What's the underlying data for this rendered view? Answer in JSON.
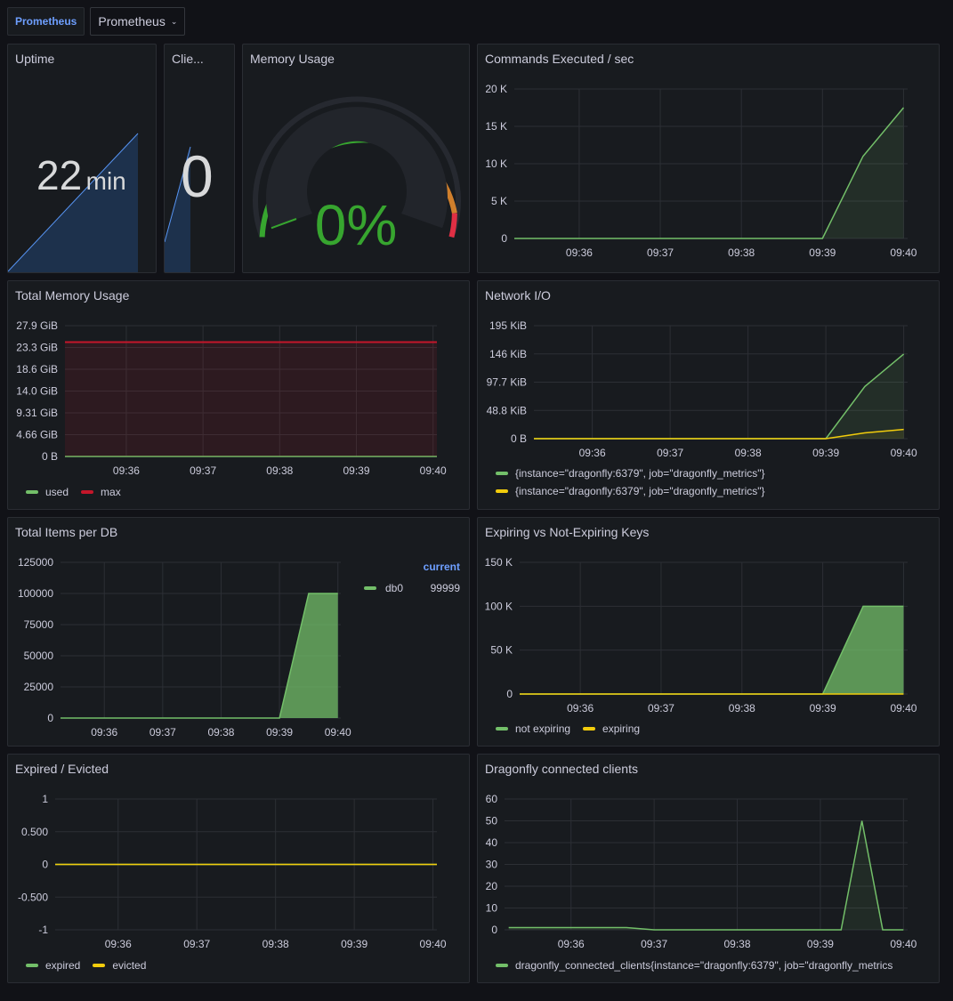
{
  "topbar": {
    "datasource_label": "Prometheus",
    "datasource_value": "Prometheus"
  },
  "panels": {
    "uptime": {
      "title": "Uptime",
      "value": "22",
      "unit": "min"
    },
    "clients": {
      "title": "Clie...",
      "value": "0"
    },
    "memory_usage": {
      "title": "Memory Usage",
      "value": "0%",
      "gauge_percent": 0
    },
    "commands": {
      "title": "Commands Executed / sec"
    },
    "total_memory": {
      "title": "Total Memory Usage",
      "legend": [
        "used",
        "max"
      ]
    },
    "network": {
      "title": "Network I/O",
      "legend": [
        "{instance=\"dragonfly:6379\", job=\"dragonfly_metrics\"}",
        "{instance=\"dragonfly:6379\", job=\"dragonfly_metrics\"}"
      ]
    },
    "items_per_db": {
      "title": "Total Items per DB",
      "legend_header": "current",
      "legend_name": "db0",
      "legend_value": "99999"
    },
    "expiring": {
      "title": "Expiring vs Not-Expiring Keys",
      "legend": [
        "not expiring",
        "expiring"
      ]
    },
    "expired": {
      "title": "Expired / Evicted",
      "legend": [
        "expired",
        "evicted"
      ]
    },
    "connected": {
      "title": "Dragonfly connected clients",
      "legend": [
        "dragonfly_connected_clients{instance=\"dragonfly:6379\", job=\"dragonfly_metrics"
      ]
    }
  },
  "colors": {
    "green": "#73bf69",
    "yellow": "#f2cc0c",
    "red": "#c4162a",
    "orange": "#ff9830",
    "blue": "#5794f2",
    "gauge_green": "#37a52f"
  },
  "chart_data": [
    {
      "type": "area",
      "title": "Commands Executed / sec",
      "x": [
        "09:35:12",
        "09:35:42",
        "09:36:12",
        "09:36:42",
        "09:37:12",
        "09:37:42",
        "09:38:12",
        "09:38:42",
        "09:39:00",
        "09:39:30",
        "09:40:00"
      ],
      "y_tick_labels": [
        "0",
        "5 K",
        "10 K",
        "15 K",
        "20 K"
      ],
      "x_tick_labels": [
        "09:36",
        "09:37",
        "09:38",
        "09:39",
        "09:40"
      ],
      "ylim": [
        0,
        20000
      ],
      "series": [
        {
          "values": [
            0,
            0,
            0,
            0,
            0,
            0,
            0,
            0,
            0,
            11000,
            17500
          ]
        }
      ]
    },
    {
      "type": "line",
      "title": "Total Memory Usage",
      "y_tick_labels": [
        "0 B",
        "4.66 GiB",
        "9.31 GiB",
        "14.0 GiB",
        "18.6 GiB",
        "23.3 GiB",
        "27.9 GiB"
      ],
      "x_tick_labels": [
        "09:36",
        "09:37",
        "09:38",
        "09:39",
        "09:40"
      ],
      "ylim": [
        0,
        27.9
      ],
      "series": [
        {
          "name": "used",
          "values": [
            0,
            0
          ]
        },
        {
          "name": "max",
          "values": [
            24.4,
            24.4
          ]
        }
      ]
    },
    {
      "type": "area",
      "title": "Network I/O",
      "x": [
        "09:35:15",
        "09:39:00",
        "09:39:30",
        "09:40:00"
      ],
      "y_tick_labels": [
        "0 B",
        "48.8 KiB",
        "97.7 KiB",
        "146 KiB",
        "195 KiB"
      ],
      "x_tick_labels": [
        "09:36",
        "09:37",
        "09:38",
        "09:39",
        "09:40"
      ],
      "ylim": [
        0,
        195
      ],
      "series": [
        {
          "name": "{instance=\"dragonfly:6379\", job=\"dragonfly_metrics\"}",
          "values": [
            0,
            0,
            90,
            146
          ]
        },
        {
          "name": "{instance=\"dragonfly:6379\", job=\"dragonfly_metrics\"}",
          "values": [
            0,
            0,
            10,
            16
          ]
        }
      ]
    },
    {
      "type": "area",
      "title": "Total Items per DB",
      "x": [
        "09:35:15",
        "09:39:00",
        "09:39:30",
        "09:40:00"
      ],
      "y_tick_labels": [
        "0",
        "25000",
        "50000",
        "75000",
        "100000",
        "125000"
      ],
      "x_tick_labels": [
        "09:36",
        "09:37",
        "09:38",
        "09:39",
        "09:40"
      ],
      "ylim": [
        0,
        125000
      ],
      "series": [
        {
          "name": "db0",
          "values": [
            0,
            0,
            99999,
            99999
          ]
        }
      ]
    },
    {
      "type": "area",
      "title": "Expiring vs Not-Expiring Keys",
      "x": [
        "09:35:15",
        "09:39:00",
        "09:39:30",
        "09:40:00"
      ],
      "y_tick_labels": [
        "0",
        "50 K",
        "100 K",
        "150 K"
      ],
      "x_tick_labels": [
        "09:36",
        "09:37",
        "09:38",
        "09:39",
        "09:40"
      ],
      "ylim": [
        0,
        150000
      ],
      "series": [
        {
          "name": "not expiring",
          "values": [
            0,
            0,
            100000,
            100000
          ]
        },
        {
          "name": "expiring",
          "values": [
            0,
            0,
            0,
            0
          ]
        }
      ]
    },
    {
      "type": "line",
      "title": "Expired / Evicted",
      "y_tick_labels": [
        "-1",
        "-0.500",
        "0",
        "0.500",
        "1"
      ],
      "x_tick_labels": [
        "09:36",
        "09:37",
        "09:38",
        "09:39",
        "09:40"
      ],
      "ylim": [
        -1,
        1
      ],
      "series": [
        {
          "name": "expired",
          "values": [
            0,
            0
          ]
        },
        {
          "name": "evicted",
          "values": [
            0,
            0
          ]
        }
      ]
    },
    {
      "type": "line",
      "title": "Dragonfly connected clients",
      "x": [
        "09:35:15",
        "09:36:40",
        "09:37:00",
        "09:39:15",
        "09:39:30",
        "09:39:45",
        "09:40:00"
      ],
      "y_tick_labels": [
        "0",
        "10",
        "20",
        "30",
        "40",
        "50",
        "60"
      ],
      "x_tick_labels": [
        "09:36",
        "09:37",
        "09:38",
        "09:39",
        "09:40"
      ],
      "ylim": [
        0,
        60
      ],
      "series": [
        {
          "name": "dragonfly_connected_clients{instance=\"dragonfly:6379\", job=\"dragonfly_metrics",
          "values": [
            1,
            1,
            0,
            0,
            50,
            0,
            0
          ]
        }
      ]
    }
  ]
}
